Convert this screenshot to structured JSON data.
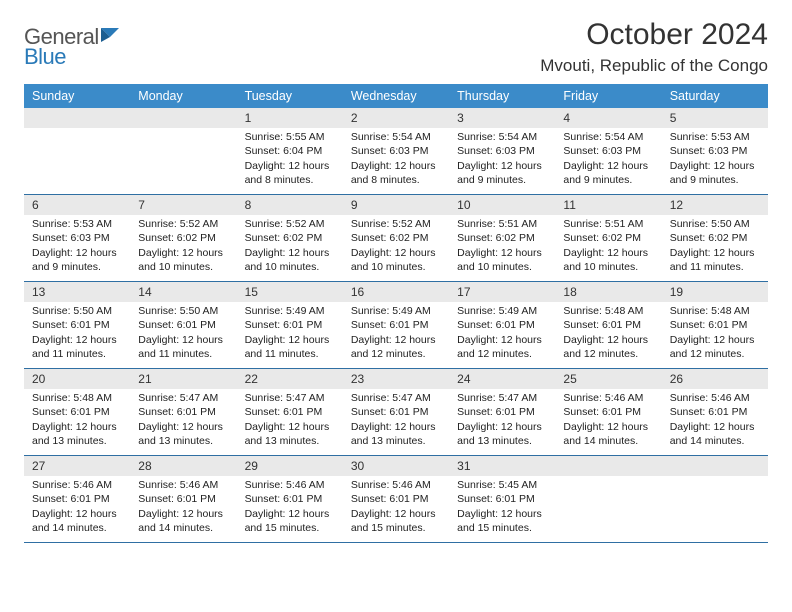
{
  "brand": {
    "name_part1": "General",
    "name_part2": "Blue"
  },
  "title": "October 2024",
  "location": "Mvouti, Republic of the Congo",
  "colors": {
    "header_bg": "#3b8bc9",
    "header_text": "#ffffff",
    "row_divider": "#2f6fa3",
    "daynum_bg": "#e9e9e9",
    "text": "#222222",
    "brand_gray": "#555555",
    "brand_blue": "#2a7ab8",
    "page_bg": "#ffffff"
  },
  "typography": {
    "title_fontsize": 30,
    "location_fontsize": 17,
    "dayheader_fontsize": 12.5,
    "daynum_fontsize": 12,
    "body_fontsize": 10.5
  },
  "day_names": [
    "Sunday",
    "Monday",
    "Tuesday",
    "Wednesday",
    "Thursday",
    "Friday",
    "Saturday"
  ],
  "weeks": [
    [
      null,
      null,
      {
        "n": "1",
        "sunrise": "Sunrise: 5:55 AM",
        "sunset": "Sunset: 6:04 PM",
        "daylight": "Daylight: 12 hours and 8 minutes."
      },
      {
        "n": "2",
        "sunrise": "Sunrise: 5:54 AM",
        "sunset": "Sunset: 6:03 PM",
        "daylight": "Daylight: 12 hours and 8 minutes."
      },
      {
        "n": "3",
        "sunrise": "Sunrise: 5:54 AM",
        "sunset": "Sunset: 6:03 PM",
        "daylight": "Daylight: 12 hours and 9 minutes."
      },
      {
        "n": "4",
        "sunrise": "Sunrise: 5:54 AM",
        "sunset": "Sunset: 6:03 PM",
        "daylight": "Daylight: 12 hours and 9 minutes."
      },
      {
        "n": "5",
        "sunrise": "Sunrise: 5:53 AM",
        "sunset": "Sunset: 6:03 PM",
        "daylight": "Daylight: 12 hours and 9 minutes."
      }
    ],
    [
      {
        "n": "6",
        "sunrise": "Sunrise: 5:53 AM",
        "sunset": "Sunset: 6:03 PM",
        "daylight": "Daylight: 12 hours and 9 minutes."
      },
      {
        "n": "7",
        "sunrise": "Sunrise: 5:52 AM",
        "sunset": "Sunset: 6:02 PM",
        "daylight": "Daylight: 12 hours and 10 minutes."
      },
      {
        "n": "8",
        "sunrise": "Sunrise: 5:52 AM",
        "sunset": "Sunset: 6:02 PM",
        "daylight": "Daylight: 12 hours and 10 minutes."
      },
      {
        "n": "9",
        "sunrise": "Sunrise: 5:52 AM",
        "sunset": "Sunset: 6:02 PM",
        "daylight": "Daylight: 12 hours and 10 minutes."
      },
      {
        "n": "10",
        "sunrise": "Sunrise: 5:51 AM",
        "sunset": "Sunset: 6:02 PM",
        "daylight": "Daylight: 12 hours and 10 minutes."
      },
      {
        "n": "11",
        "sunrise": "Sunrise: 5:51 AM",
        "sunset": "Sunset: 6:02 PM",
        "daylight": "Daylight: 12 hours and 10 minutes."
      },
      {
        "n": "12",
        "sunrise": "Sunrise: 5:50 AM",
        "sunset": "Sunset: 6:02 PM",
        "daylight": "Daylight: 12 hours and 11 minutes."
      }
    ],
    [
      {
        "n": "13",
        "sunrise": "Sunrise: 5:50 AM",
        "sunset": "Sunset: 6:01 PM",
        "daylight": "Daylight: 12 hours and 11 minutes."
      },
      {
        "n": "14",
        "sunrise": "Sunrise: 5:50 AM",
        "sunset": "Sunset: 6:01 PM",
        "daylight": "Daylight: 12 hours and 11 minutes."
      },
      {
        "n": "15",
        "sunrise": "Sunrise: 5:49 AM",
        "sunset": "Sunset: 6:01 PM",
        "daylight": "Daylight: 12 hours and 11 minutes."
      },
      {
        "n": "16",
        "sunrise": "Sunrise: 5:49 AM",
        "sunset": "Sunset: 6:01 PM",
        "daylight": "Daylight: 12 hours and 12 minutes."
      },
      {
        "n": "17",
        "sunrise": "Sunrise: 5:49 AM",
        "sunset": "Sunset: 6:01 PM",
        "daylight": "Daylight: 12 hours and 12 minutes."
      },
      {
        "n": "18",
        "sunrise": "Sunrise: 5:48 AM",
        "sunset": "Sunset: 6:01 PM",
        "daylight": "Daylight: 12 hours and 12 minutes."
      },
      {
        "n": "19",
        "sunrise": "Sunrise: 5:48 AM",
        "sunset": "Sunset: 6:01 PM",
        "daylight": "Daylight: 12 hours and 12 minutes."
      }
    ],
    [
      {
        "n": "20",
        "sunrise": "Sunrise: 5:48 AM",
        "sunset": "Sunset: 6:01 PM",
        "daylight": "Daylight: 12 hours and 13 minutes."
      },
      {
        "n": "21",
        "sunrise": "Sunrise: 5:47 AM",
        "sunset": "Sunset: 6:01 PM",
        "daylight": "Daylight: 12 hours and 13 minutes."
      },
      {
        "n": "22",
        "sunrise": "Sunrise: 5:47 AM",
        "sunset": "Sunset: 6:01 PM",
        "daylight": "Daylight: 12 hours and 13 minutes."
      },
      {
        "n": "23",
        "sunrise": "Sunrise: 5:47 AM",
        "sunset": "Sunset: 6:01 PM",
        "daylight": "Daylight: 12 hours and 13 minutes."
      },
      {
        "n": "24",
        "sunrise": "Sunrise: 5:47 AM",
        "sunset": "Sunset: 6:01 PM",
        "daylight": "Daylight: 12 hours and 13 minutes."
      },
      {
        "n": "25",
        "sunrise": "Sunrise: 5:46 AM",
        "sunset": "Sunset: 6:01 PM",
        "daylight": "Daylight: 12 hours and 14 minutes."
      },
      {
        "n": "26",
        "sunrise": "Sunrise: 5:46 AM",
        "sunset": "Sunset: 6:01 PM",
        "daylight": "Daylight: 12 hours and 14 minutes."
      }
    ],
    [
      {
        "n": "27",
        "sunrise": "Sunrise: 5:46 AM",
        "sunset": "Sunset: 6:01 PM",
        "daylight": "Daylight: 12 hours and 14 minutes."
      },
      {
        "n": "28",
        "sunrise": "Sunrise: 5:46 AM",
        "sunset": "Sunset: 6:01 PM",
        "daylight": "Daylight: 12 hours and 14 minutes."
      },
      {
        "n": "29",
        "sunrise": "Sunrise: 5:46 AM",
        "sunset": "Sunset: 6:01 PM",
        "daylight": "Daylight: 12 hours and 15 minutes."
      },
      {
        "n": "30",
        "sunrise": "Sunrise: 5:46 AM",
        "sunset": "Sunset: 6:01 PM",
        "daylight": "Daylight: 12 hours and 15 minutes."
      },
      {
        "n": "31",
        "sunrise": "Sunrise: 5:45 AM",
        "sunset": "Sunset: 6:01 PM",
        "daylight": "Daylight: 12 hours and 15 minutes."
      },
      null,
      null
    ]
  ]
}
